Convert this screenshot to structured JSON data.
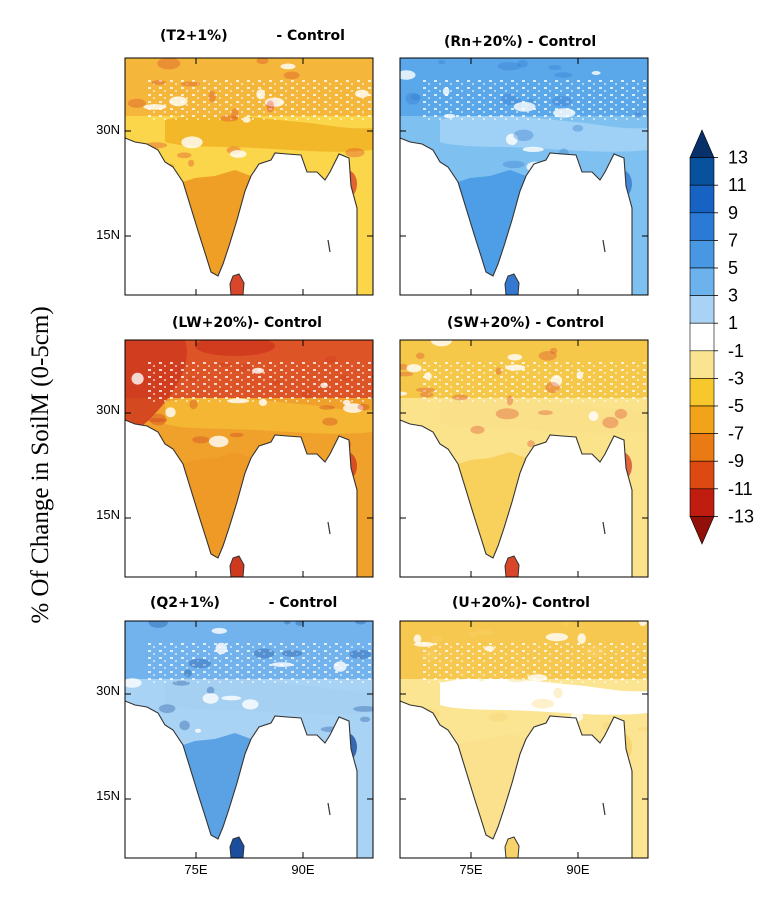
{
  "chart_data": {
    "type": "heatmap",
    "ylabel": "% Of Change in SoilM (0-5cm)",
    "x_ticks": [
      "75E",
      "90E"
    ],
    "y_ticks": [
      "30N",
      "15N"
    ],
    "colorbar": {
      "labels": [
        "13",
        "11",
        "9",
        "7",
        "5",
        "3",
        "1",
        "-1",
        "-3",
        "-5",
        "-7",
        "-9",
        "-11",
        "-13"
      ],
      "colors": [
        "#08306b",
        "#08519c",
        "#1763c4",
        "#2b7ad6",
        "#4797e3",
        "#6cb2ec",
        "#a9d2f5",
        "#ffffff",
        "#fae48f",
        "#f7c72e",
        "#f1a41a",
        "#ea7a14",
        "#dc4a12",
        "#c01c10",
        "#92100a"
      ]
    },
    "panels": [
      {
        "title": "(T2+1%)          - Control",
        "sign": "dry",
        "intensity": "moderate",
        "colors": {
          "base": "#fbd54a",
          "land": "#f3b72a",
          "south": "#ef9f25",
          "hot": "#d9462a",
          "north": "#f4b73b"
        }
      },
      {
        "title": "(Rn+20%) - Control",
        "sign": "wet",
        "intensity": "moderate",
        "colors": {
          "base": "#7ec0f0",
          "land": "#9fd0f5",
          "south": "#4d9ee6",
          "hot": "#3479cf",
          "north": "#5aa8ea"
        }
      },
      {
        "title": "(LW+20%)- Control",
        "sign": "dry",
        "intensity": "strong",
        "colors": {
          "base": "#f0a12c",
          "land": "#f5b634",
          "south": "#ef9a27",
          "hot": "#cf3a1f",
          "north": "#dd5526"
        }
      },
      {
        "title": "(SW+20%) - Control",
        "sign": "dry",
        "intensity": "weak",
        "colors": {
          "base": "#fbe38c",
          "land": "#fbe08a",
          "south": "#f8d15d",
          "hot": "#d9462a",
          "north": "#f6c84a"
        }
      },
      {
        "title": "(Q2+1%)          - Control",
        "sign": "wet",
        "intensity": "moderate",
        "colors": {
          "base": "#a9d3f4",
          "land": "#a6d0f2",
          "south": "#5aa2e4",
          "hot": "#1b4f9e",
          "north": "#72b3ed"
        }
      },
      {
        "title": "(U+20%)- Control",
        "sign": "dry",
        "intensity": "weak",
        "colors": {
          "base": "#fbe492",
          "land": "#ffffff",
          "south": "#fbe08d",
          "hot": "#f8d36c",
          "north": "#f7c850"
        }
      }
    ]
  }
}
